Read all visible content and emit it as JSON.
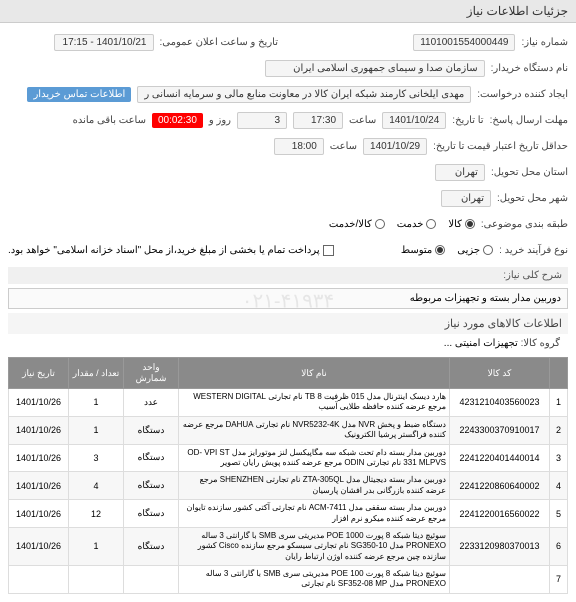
{
  "header": {
    "title": "جزئیات اطلاعات نیاز"
  },
  "form": {
    "niaz_no_label": "شماره نیاز:",
    "niaz_no": "1101001554000449",
    "org_label": "نام دستگاه خریدار:",
    "org": "سازمان صدا و سیمای جمهوری اسلامی ایران",
    "announce_label": "تاریخ و ساعت اعلان عمومی:",
    "announce": "1401/10/21 - 17:15",
    "requester_label": "ایجاد کننده درخواست:",
    "requester": "مهدی ایلخانی کارمند شبکه ایران کالا در معاونت منابع مالی و سرمایه انسانی ر",
    "contact_label": "اطلاعات تماس خریدار",
    "reply_deadline_label": "مهلت ارسال پاسخ:",
    "until_label": "تا تاریخ:",
    "reply_date": "1401/10/24",
    "time_label": "ساعت",
    "reply_time": "17:30",
    "days_remain": "3",
    "days_label": "روز و",
    "countdown": "00:02:30",
    "remain_label": "ساعت باقی مانده",
    "credit_label": "حداقل تاریخ اعتبار قیمت تا تاریخ:",
    "credit_date": "1401/10/29",
    "credit_time": "18:00",
    "delivery_city_label": "استان محل تحویل:",
    "delivery_city": "تهران",
    "delivery_town_label": "شهر محل تحویل:",
    "delivery_town": "تهران",
    "subject_cat_label": "طبقه بندی موضوعی:",
    "cat_kala": "کالا",
    "cat_service": "خدمت",
    "cat_both": "کالا/خدمت",
    "buy_type_label": "نوع فرآیند خرید :",
    "type_low": "جزیی",
    "type_mid": "متوسط",
    "payment_note": "پرداخت تمام یا بخشی از مبلغ خرید،از محل \"اسناد خزانه اسلامی\" خواهد بود.",
    "desc_label": "شرح کلی نیاز:",
    "desc": "دوربین مدار بسته و تجهیزات مربوطه",
    "items_header": "اطلاعات کالاهای مورد نیاز",
    "group_label": "گروه کالا:",
    "group": "تجهیزات امنیتی ..."
  },
  "table": {
    "headers": {
      "idx": "",
      "code": "کد کالا",
      "name": "نام کالا",
      "unit": "واحد شمارش",
      "qty": "تعداد / مقدار",
      "date": "تاریخ نیاز"
    },
    "rows": [
      {
        "idx": "1",
        "code": "4231210403560023",
        "name": "هارد دیسک اینترنال مدل 015 ظرفیت TB 8 نام تجارتی WESTERN DIGITAL مرجع عرضه کننده حافظه طلایی آسیب",
        "unit": "عدد",
        "qty": "1",
        "date": "1401/10/26"
      },
      {
        "idx": "2",
        "code": "2243300370910017",
        "name": "دستگاه ضبط و پخش NVR مدل NVR5232-4K نام تجارتی DAHUA مرجع عرضه کننده فراگستر پرشیا الکترونیک",
        "unit": "دستگاه",
        "qty": "1",
        "date": "1401/10/26"
      },
      {
        "idx": "3",
        "code": "2241220401440014",
        "name": "دوربین مدار بسته دام تحت شبکه سه مگاپیکسل لنز موتورایز مدل OD- VPI ST 331 MLPVS نام تجارتی ODIN مرجع عرضه کننده پویش رایان تصویر",
        "unit": "دستگاه",
        "qty": "3",
        "date": "1401/10/26"
      },
      {
        "idx": "4",
        "code": "2241220860640002",
        "name": "دوربین مدار بسته دیجیتال مدل ZTA-305QL نام تجارتی SHENZHEN مرجع عرضه کننده بازرگانی بدر افشان پارسیان",
        "unit": "دستگاه",
        "qty": "4",
        "date": "1401/10/26"
      },
      {
        "idx": "5",
        "code": "2241220016560022",
        "name": "دوربین مدار بسته سقفی مدل ACM-7411 نام تجارتی آکتی کشور سازنده تایوان مرجع عرضه کننده میکرو نرم افزار",
        "unit": "دستگاه",
        "qty": "12",
        "date": "1401/10/26"
      },
      {
        "idx": "6",
        "code": "2233120980370013",
        "name": "سوئیچ دیتا شبکه 8 پورت POE 1000 مدیریتی سری SMB با گارانتی 3 ساله PRONEXO مدل SG350-10 نام تجارتی سیسکو مرجع سازنده Cisco کشور سازنده چین مرجع عرضه کننده اوژن ارتباط رایان",
        "unit": "دستگاه",
        "qty": "1",
        "date": "1401/10/26"
      },
      {
        "idx": "7",
        "code": "",
        "name": "سوئیچ دیتا شبکه 8 پورت POE 100 مدیریتی سری SMB با گارانتی 3 ساله PRONEXO مدل SF352-08 MP نام تجارتی",
        "unit": "",
        "qty": "",
        "date": ""
      }
    ]
  },
  "watermark": "۰۲۱-۴۱۹۳۴"
}
